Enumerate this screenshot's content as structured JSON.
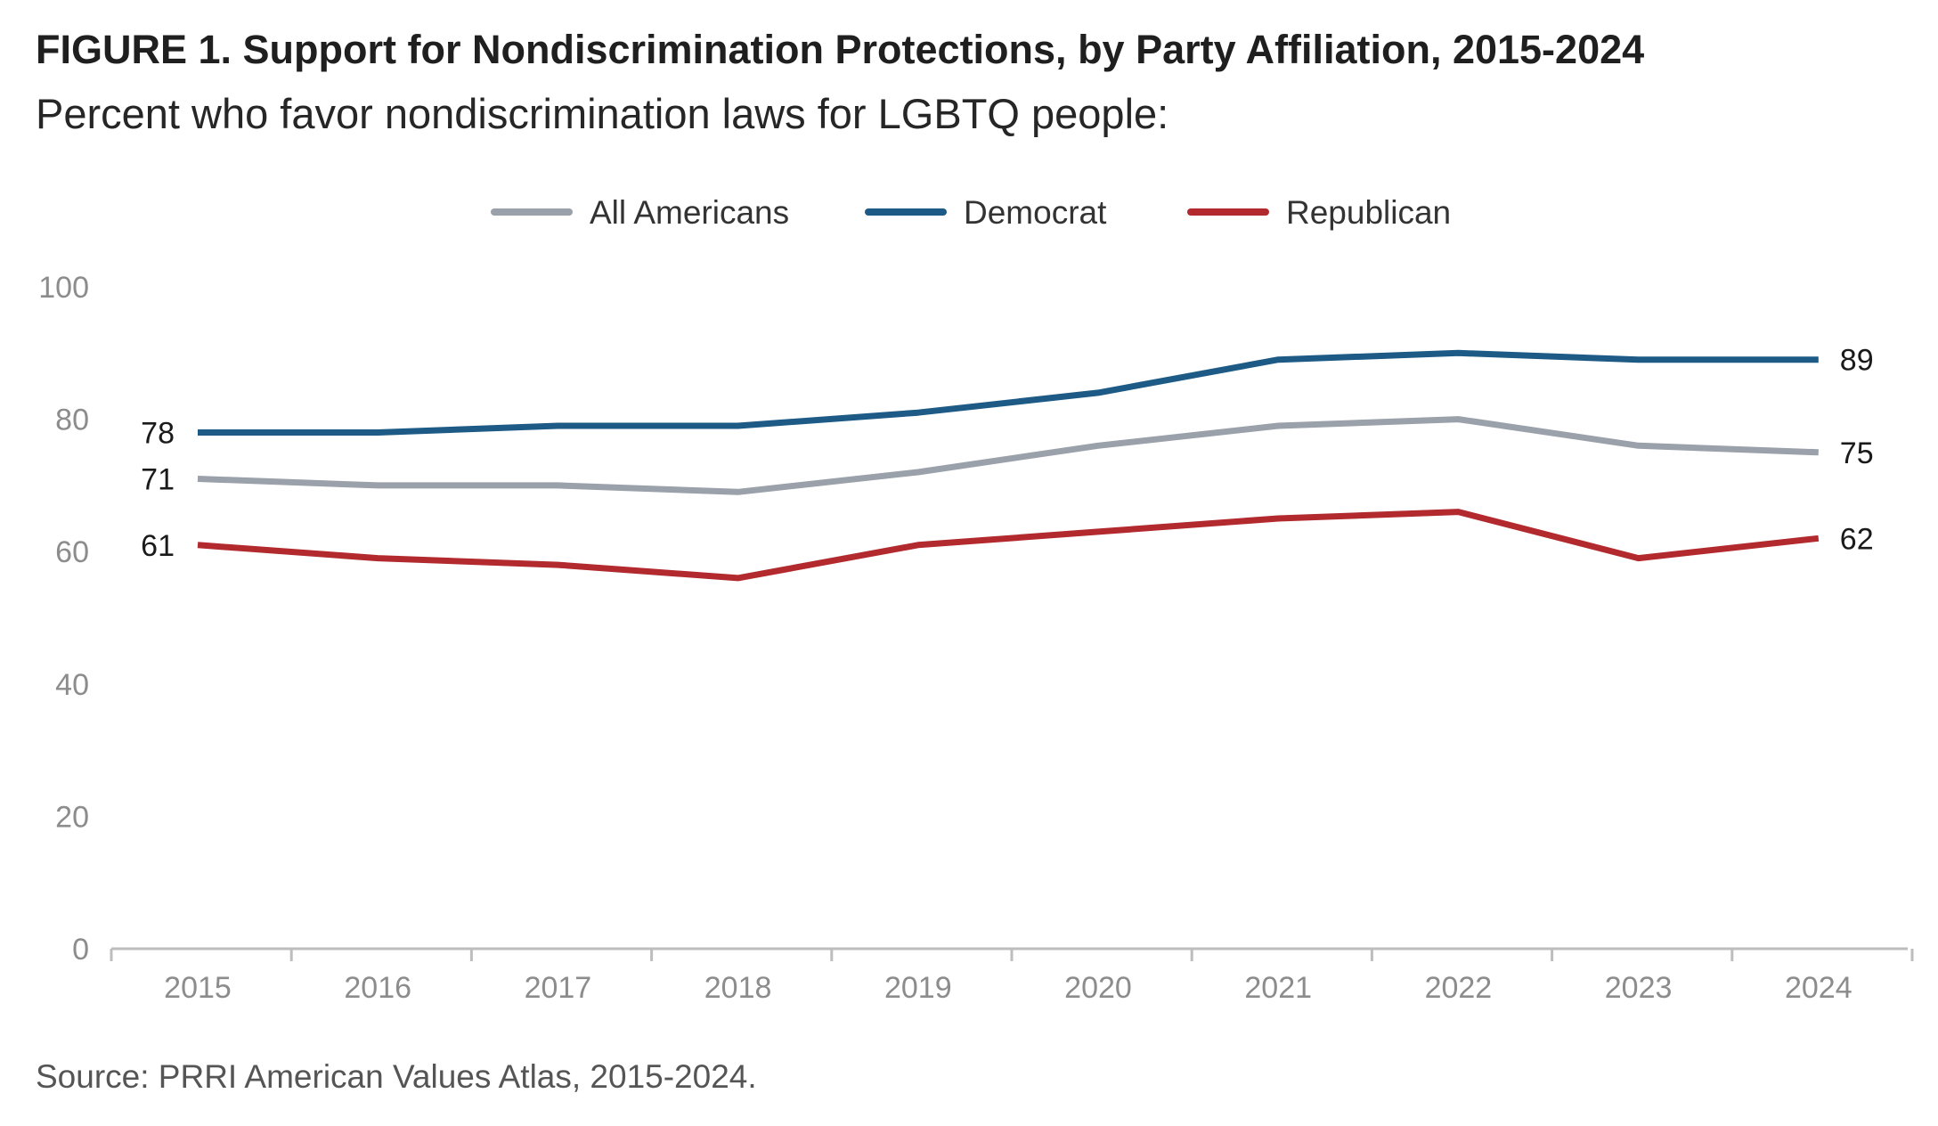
{
  "figure": {
    "title": "FIGURE 1.  Support for Nondiscrimination Protections, by Party Affiliation, 2015-2024",
    "subtitle": "Percent who favor nondiscrimination laws for LGBTQ people:",
    "source": "Source: PRRI American Values Atlas, 2015-2024."
  },
  "chart_data": {
    "type": "line",
    "title": "FIGURE 1.  Support for Nondiscrimination Protections, by Party Affiliation, 2015-2024",
    "subtitle": "Percent who favor nondiscrimination laws for LGBTQ people:",
    "x": [
      "2015",
      "2016",
      "2017",
      "2018",
      "2019",
      "2020",
      "2021",
      "2022",
      "2023",
      "2024"
    ],
    "ylim": [
      0,
      100
    ],
    "yticks": [
      0,
      20,
      40,
      60,
      80,
      100
    ],
    "grid": false,
    "legend_position": "top-center",
    "series": [
      {
        "name": "All Americans",
        "color": "#9aa1aa",
        "values": [
          71,
          70,
          70,
          69,
          72,
          76,
          79,
          80,
          76,
          75
        ],
        "start_label": "71",
        "end_label": "75"
      },
      {
        "name": "Democrat",
        "color": "#1d5a85",
        "values": [
          78,
          78,
          79,
          79,
          81,
          84,
          89,
          90,
          89,
          89
        ],
        "start_label": "78",
        "end_label": "89"
      },
      {
        "name": "Republican",
        "color": "#b22a2e",
        "values": [
          61,
          59,
          58,
          56,
          61,
          63,
          65,
          66,
          59,
          62
        ],
        "start_label": "61",
        "end_label": "62"
      }
    ]
  }
}
